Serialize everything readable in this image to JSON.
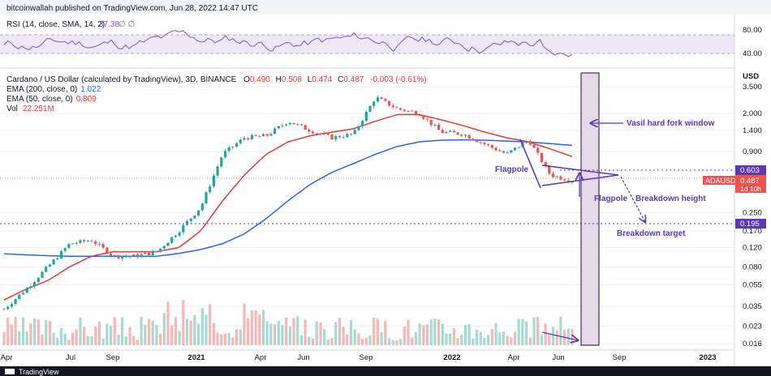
{
  "header": {
    "published": "bitcoinwallah published on TradingView.com, Jun 28, 2022 14:47 UTC"
  },
  "rsi_pane": {
    "label": "RSI (14, close, SMA, 14, 2)",
    "value": "37.38",
    "glyphs": "∅ ∅",
    "levels": [
      "80.00",
      "40.00"
    ],
    "color": "#7e57c2"
  },
  "legend": {
    "title": "Cardano / US Dollar (calculated by TradingView), 3D, BINANCE",
    "ohlc": {
      "O_label": "O",
      "O": "0.490",
      "H_label": "H",
      "H": "0.508",
      "L_label": "L",
      "L": "0.474",
      "C_label": "C",
      "C": "0.487",
      "change": "-0.003 (-0.61%)"
    },
    "ema200": {
      "label": "EMA (200, close, 0)",
      "value": "1.022",
      "color": "#2962ff"
    },
    "ema50": {
      "label": "EMA (50, close, 0)",
      "value": "0.809",
      "color": "#e53935"
    },
    "vol": {
      "label": "Vol",
      "value": "22.251M",
      "color": "#e53935"
    }
  },
  "price_axis": {
    "currency": "USD",
    "ticks": [
      "3.500",
      "2.000",
      "1.400",
      "0.900",
      "0.250",
      "0.170",
      "0.120",
      "0.080",
      "0.055",
      "0.035",
      "0.023",
      "0.016"
    ],
    "badges": {
      "upper_level": "0.603",
      "symbol": "ADAUSD",
      "last_price": "0.487",
      "countdown": "1d 10h",
      "lower_level": "0.195"
    }
  },
  "time_axis": {
    "labels": [
      "Apr",
      "Jul",
      "Sep",
      "2021",
      "Apr",
      "Jun",
      "Sep",
      "2022",
      "Apr",
      "Jun",
      "Sep",
      "2023"
    ]
  },
  "annotations": {
    "vasil": "Vasil hard fork window",
    "flagpole_top": "Flagpole",
    "flagpole_right": "Flagpole",
    "breakdown_height": "Breakdown height",
    "breakdown_target": "Breakdown target"
  },
  "footer": {
    "brand": "TradingView"
  },
  "chart_data": {
    "type": "line",
    "title": "Cardano / US Dollar (calculated by TradingView), 3D, BINANCE",
    "yscale": "log",
    "ylim": [
      0.016,
      3.5
    ],
    "x": [
      "2020-04",
      "2020-05",
      "2020-06",
      "2020-07",
      "2020-08",
      "2020-09",
      "2020-10",
      "2020-11",
      "2020-12",
      "2021-01",
      "2021-02",
      "2021-03",
      "2021-04",
      "2021-05",
      "2021-06",
      "2021-07",
      "2021-08",
      "2021-09",
      "2021-10",
      "2021-11",
      "2021-12",
      "2022-01",
      "2022-02",
      "2022-03",
      "2022-04",
      "2022-05",
      "2022-06"
    ],
    "series": [
      {
        "name": "ADAUSD",
        "values": [
          0.033,
          0.05,
          0.08,
          0.13,
          0.14,
          0.1,
          0.1,
          0.11,
          0.17,
          0.28,
          0.85,
          1.2,
          1.25,
          1.7,
          1.4,
          1.2,
          1.3,
          2.8,
          2.2,
          2.0,
          1.35,
          1.3,
          1.05,
          0.85,
          1.15,
          0.55,
          0.487
        ]
      },
      {
        "name": "EMA (200, close, 0)",
        "values": [
          0.105,
          0.103,
          0.101,
          0.1,
          0.1,
          0.1,
          0.1,
          0.1,
          0.106,
          0.115,
          0.13,
          0.16,
          0.22,
          0.32,
          0.45,
          0.58,
          0.7,
          0.85,
          1.0,
          1.1,
          1.14,
          1.15,
          1.14,
          1.12,
          1.1,
          1.06,
          1.022
        ]
      },
      {
        "name": "EMA (50, close, 0)",
        "values": [
          0.04,
          0.05,
          0.06,
          0.08,
          0.1,
          0.11,
          0.11,
          0.11,
          0.12,
          0.17,
          0.32,
          0.55,
          0.85,
          1.1,
          1.25,
          1.35,
          1.45,
          1.7,
          1.95,
          1.95,
          1.75,
          1.55,
          1.35,
          1.2,
          1.1,
          0.95,
          0.809
        ]
      }
    ],
    "levels": {
      "flag_top": 0.603,
      "breakdown_target": 0.195,
      "last": 0.487
    },
    "rsi": {
      "levels": [
        80,
        40
      ],
      "last": 37.38
    },
    "grid": true,
    "legend": "top-left"
  }
}
